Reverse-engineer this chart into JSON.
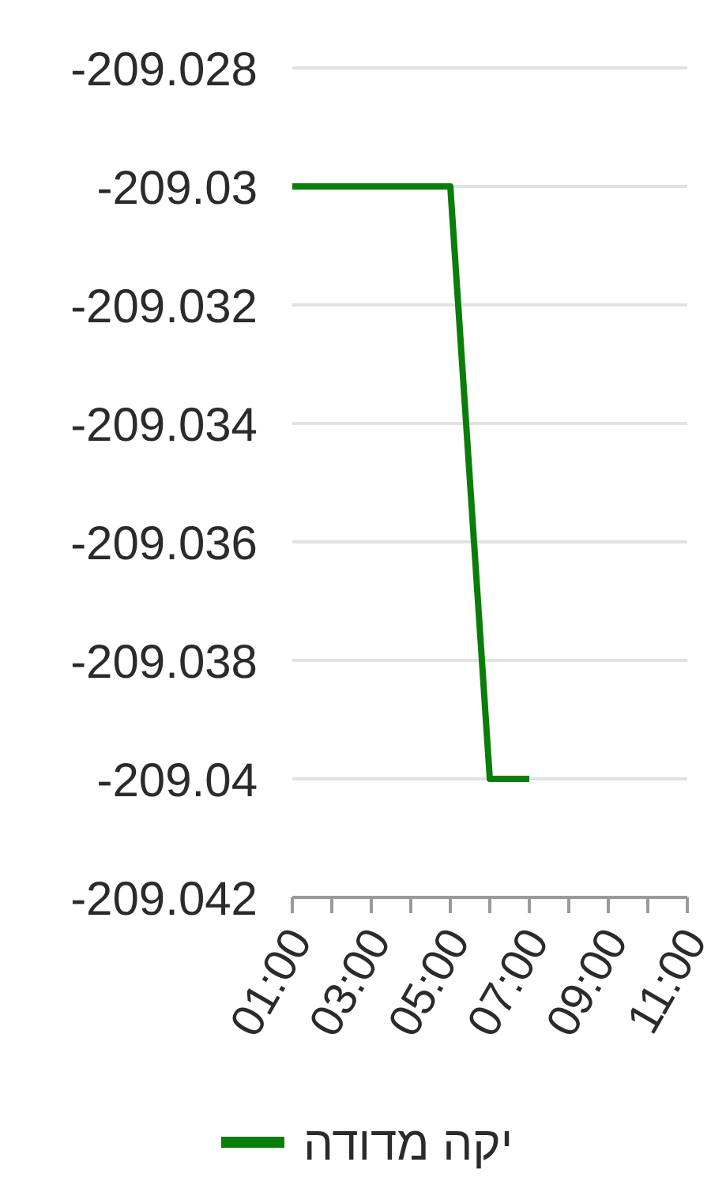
{
  "chart_data": {
    "type": "line",
    "x": [
      1,
      5,
      6,
      7
    ],
    "series": [
      {
        "name": "יקה מדודה",
        "color": "#0a7d0a",
        "values": [
          -209.03,
          -209.03,
          -209.04,
          -209.04
        ]
      }
    ],
    "xlim": [
      1,
      11
    ],
    "xticks": [
      {
        "value": 1,
        "label": "01:00"
      },
      {
        "value": 2,
        "label": null
      },
      {
        "value": 3,
        "label": "03:00"
      },
      {
        "value": 4,
        "label": null
      },
      {
        "value": 5,
        "label": "05:00"
      },
      {
        "value": 6,
        "label": null
      },
      {
        "value": 7,
        "label": "07:00"
      },
      {
        "value": 8,
        "label": null
      },
      {
        "value": 9,
        "label": "09:00"
      },
      {
        "value": 10,
        "label": null
      },
      {
        "value": 11,
        "label": "11:00"
      }
    ],
    "ylim": [
      -209.042,
      -209.028
    ],
    "yticks": [
      -209.042,
      -209.04,
      -209.038,
      -209.036,
      -209.034,
      -209.032,
      -209.03,
      -209.028
    ],
    "grid": "y",
    "legend": "bottom",
    "line_style": "solid"
  }
}
